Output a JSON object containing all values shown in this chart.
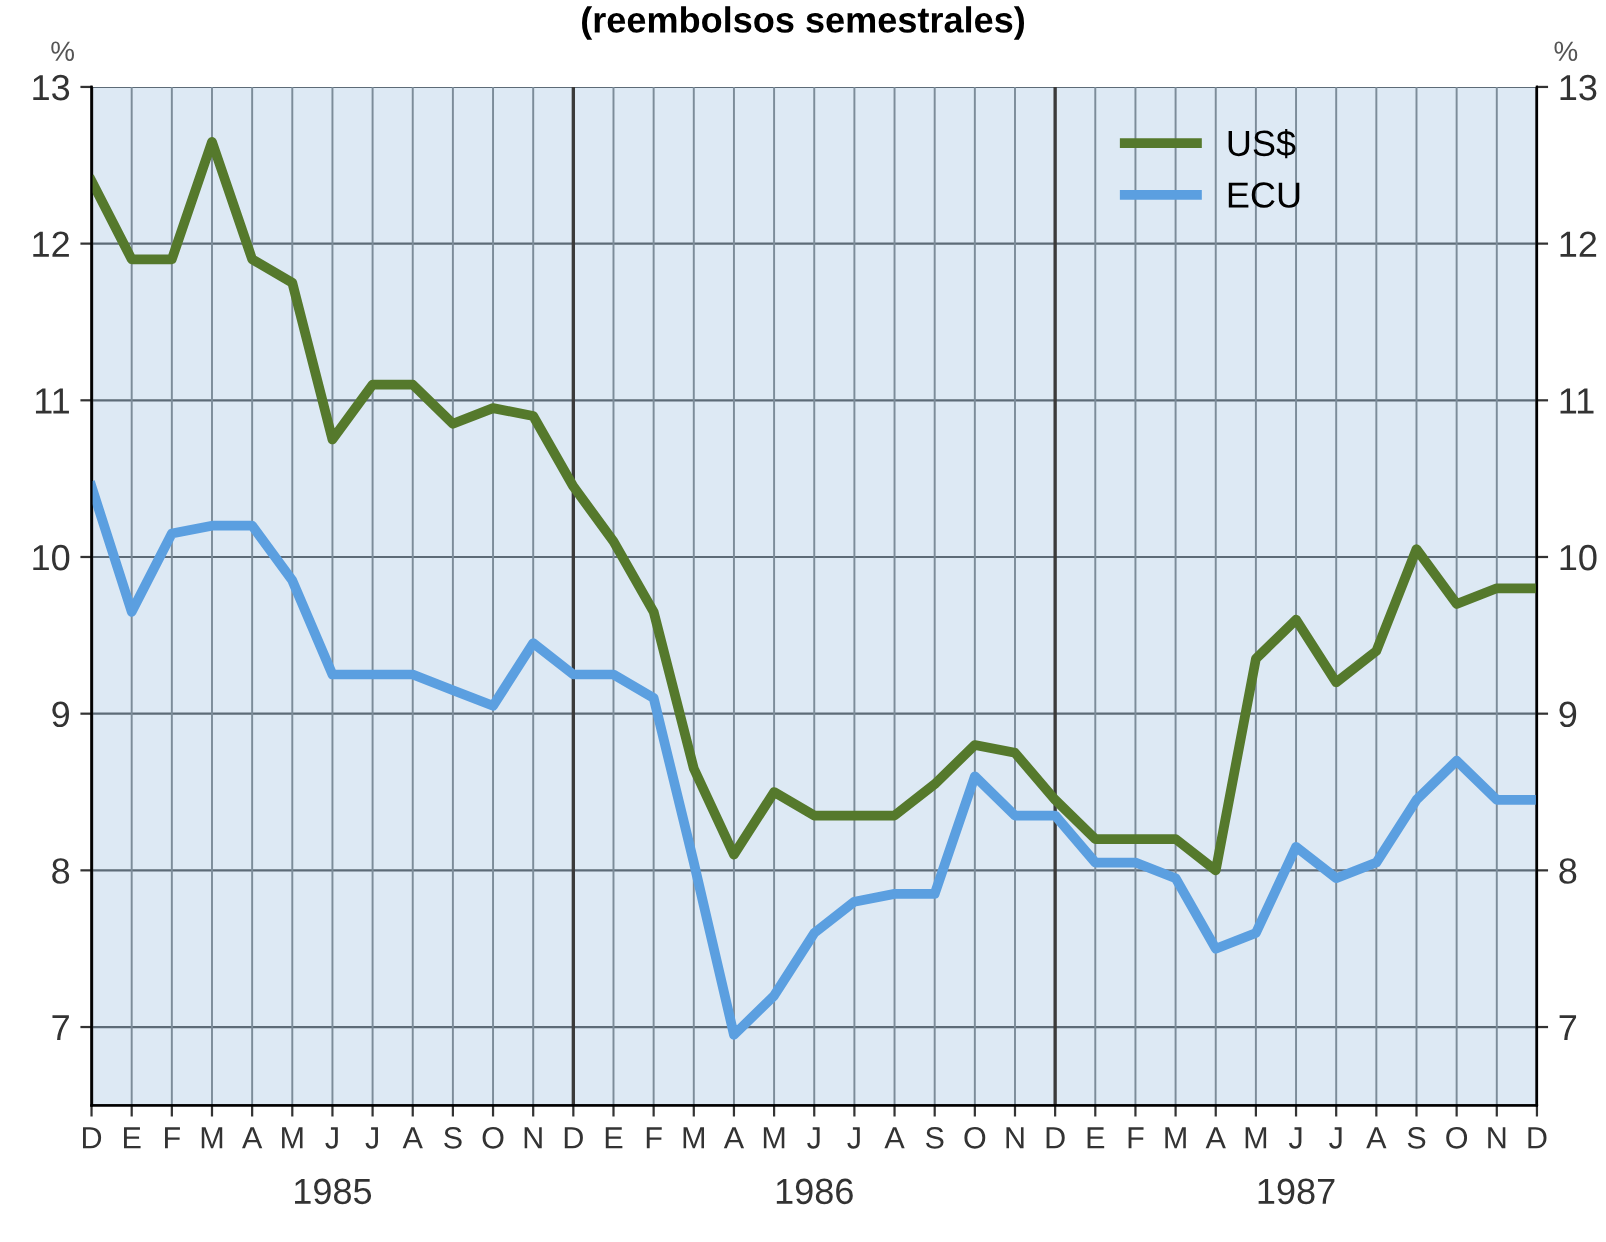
{
  "chart_data": {
    "type": "line",
    "title": "(reembolsos semestrales)",
    "ylabel": "%",
    "y2label": "%",
    "categories": [
      "D",
      "E",
      "F",
      "M",
      "A",
      "M",
      "J",
      "J",
      "A",
      "S",
      "O",
      "N",
      "D",
      "E",
      "F",
      "M",
      "A",
      "M",
      "J",
      "J",
      "A",
      "S",
      "O",
      "N",
      "D",
      "E",
      "F",
      "M",
      "A",
      "M",
      "J",
      "J",
      "A",
      "S",
      "O",
      "N",
      "D"
    ],
    "series": [
      {
        "name": "US$",
        "color": "#55792c",
        "values": [
          12.4,
          11.9,
          11.9,
          12.65,
          11.9,
          11.75,
          10.75,
          11.1,
          11.1,
          10.85,
          10.95,
          10.9,
          10.45,
          10.1,
          9.65,
          8.65,
          8.1,
          8.5,
          8.35,
          8.35,
          8.35,
          8.55,
          8.8,
          8.75,
          8.45,
          8.2,
          8.2,
          8.2,
          8.0,
          9.35,
          9.6,
          9.2,
          9.4,
          10.05,
          9.7,
          9.8,
          9.8
        ]
      },
      {
        "name": "ECU",
        "color": "#5b9fe0",
        "values": [
          10.45,
          9.65,
          10.15,
          10.2,
          10.2,
          9.85,
          9.25,
          9.25,
          9.25,
          9.15,
          9.05,
          9.45,
          9.25,
          9.25,
          9.1,
          8.05,
          6.95,
          7.2,
          7.6,
          7.8,
          7.85,
          7.85,
          8.6,
          8.35,
          8.35,
          8.05,
          8.05,
          7.95,
          7.5,
          7.6,
          8.15,
          7.95,
          8.05,
          8.45,
          8.7,
          8.45,
          8.45
        ]
      }
    ],
    "ylim": [
      6.5,
      13
    ],
    "yticks": [
      7,
      8,
      9,
      10,
      11,
      12,
      13
    ],
    "y2lim": [
      6.5,
      13
    ],
    "y2ticks": [
      7,
      8,
      9,
      10,
      11,
      12,
      13
    ],
    "annotations": [
      "1985",
      "1986",
      "1987"
    ],
    "grid": true,
    "legend": "top right"
  }
}
